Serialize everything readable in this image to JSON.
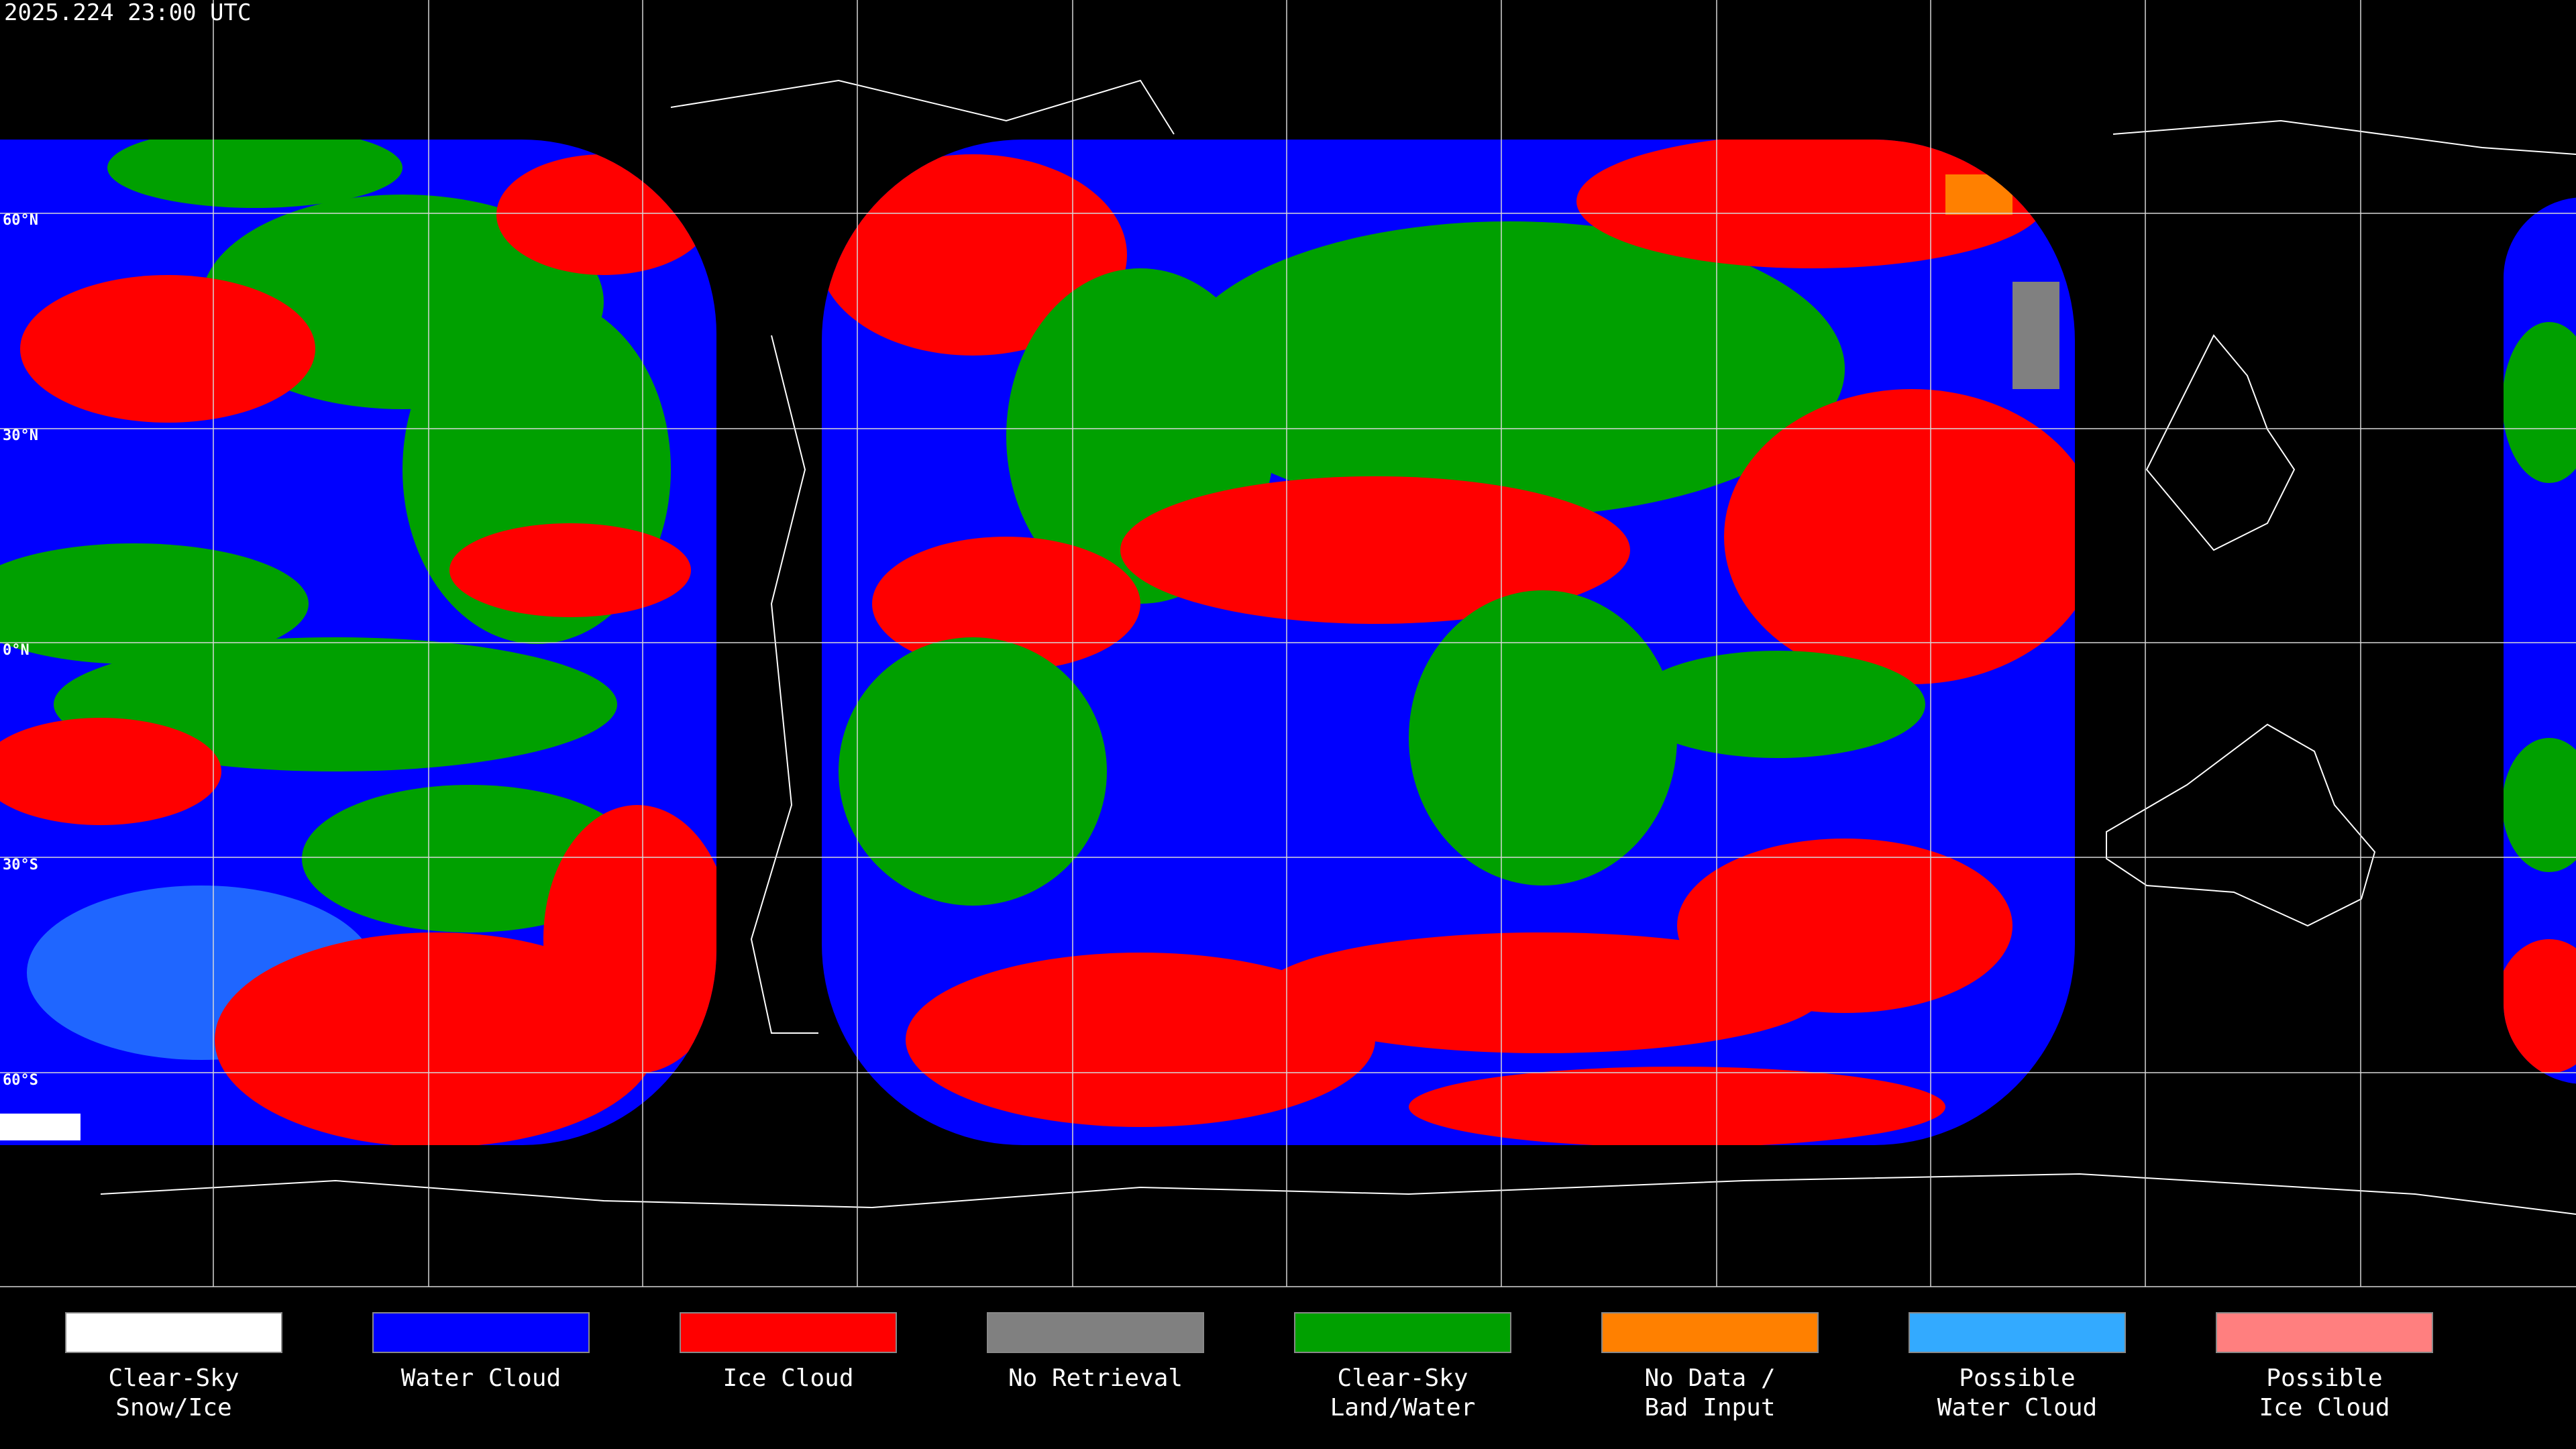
{
  "header": {
    "title": "2025.224 23:00 UTC"
  },
  "map": {
    "latitude_labels": [
      "60°N",
      "30°N",
      "0°N",
      "30°S",
      "60°S"
    ]
  },
  "legend": {
    "items": [
      {
        "label_lines": [
          "Clear-Sky",
          "Snow/Ice"
        ],
        "color": "#ffffff"
      },
      {
        "label_lines": [
          "Water Cloud"
        ],
        "color": "#0000ff"
      },
      {
        "label_lines": [
          "Ice Cloud"
        ],
        "color": "#ff0000"
      },
      {
        "label_lines": [
          "No Retrieval"
        ],
        "color": "#808080"
      },
      {
        "label_lines": [
          "Clear-Sky",
          "Land/Water"
        ],
        "color": "#00a000"
      },
      {
        "label_lines": [
          "No Data /",
          "Bad Input"
        ],
        "color": "#ff8000"
      },
      {
        "label_lines": [
          "Possible",
          "Water Cloud"
        ],
        "color": "#33aaff"
      },
      {
        "label_lines": [
          "Possible",
          "Ice Cloud"
        ],
        "color": "#ff7f7f"
      }
    ]
  }
}
